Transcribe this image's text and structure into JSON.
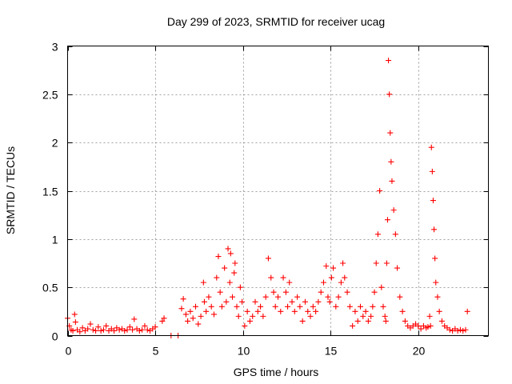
{
  "chart_data": {
    "type": "scatter",
    "title": "Day 299 of 2023, SRMTID for receiver ucag",
    "xlabel": "GPS time / hours",
    "ylabel": "SRMTID / TECUs",
    "xlim": [
      0,
      24
    ],
    "ylim": [
      0,
      3
    ],
    "xticks": [
      0,
      5,
      10,
      15,
      20
    ],
    "yticks": [
      0,
      0.5,
      1,
      1.5,
      2,
      2.5,
      3
    ],
    "xtick_labels": [
      "0",
      "5",
      "10",
      "15",
      "20"
    ],
    "ytick_labels": [
      "0",
      "0.5",
      "1",
      "1.5",
      "2",
      "2.5",
      "3"
    ],
    "grid": true,
    "marker": "+",
    "color": "#ff0000",
    "series": [
      {
        "name": "SRMTID",
        "x": [
          0.0,
          0.1,
          0.2,
          0.3,
          0.4,
          0.45,
          0.55,
          0.7,
          0.85,
          1.0,
          1.15,
          1.3,
          1.45,
          1.6,
          1.75,
          1.9,
          2.05,
          2.2,
          2.35,
          2.5,
          2.65,
          2.8,
          2.95,
          3.1,
          3.25,
          3.4,
          3.55,
          3.7,
          3.8,
          3.95,
          4.1,
          4.25,
          4.4,
          4.55,
          4.7,
          4.85,
          5.0,
          5.4,
          5.5,
          5.9,
          6.3,
          6.5,
          6.6,
          6.75,
          6.85,
          7.0,
          7.15,
          7.3,
          7.45,
          7.6,
          7.75,
          7.8,
          7.9,
          8.05,
          8.2,
          8.35,
          8.5,
          8.6,
          8.7,
          8.8,
          8.95,
          9.05,
          9.15,
          9.25,
          9.3,
          9.4,
          9.5,
          9.55,
          9.65,
          9.75,
          9.85,
          9.95,
          10.1,
          10.25,
          10.4,
          10.55,
          10.7,
          10.85,
          11.0,
          11.15,
          11.3,
          11.45,
          11.6,
          11.75,
          11.85,
          12.0,
          12.15,
          12.3,
          12.45,
          12.55,
          12.65,
          12.8,
          12.95,
          13.1,
          13.25,
          13.4,
          13.55,
          13.7,
          13.85,
          14.0,
          14.15,
          14.3,
          14.45,
          14.6,
          14.75,
          14.85,
          14.95,
          15.05,
          15.15,
          15.3,
          15.45,
          15.6,
          15.7,
          15.8,
          15.95,
          16.1,
          16.25,
          16.4,
          16.55,
          16.7,
          16.85,
          17.0,
          17.15,
          17.3,
          17.4,
          17.5,
          17.6,
          17.7,
          17.8,
          17.9,
          18.0,
          18.1,
          18.15,
          18.2,
          18.25,
          18.3,
          18.35,
          18.4,
          18.45,
          18.5,
          18.6,
          18.7,
          18.8,
          18.95,
          19.1,
          19.25,
          19.4,
          19.55,
          19.7,
          19.85,
          20.0,
          20.15,
          20.3,
          20.45,
          20.55,
          20.65,
          20.7,
          20.75,
          20.8,
          20.85,
          20.9,
          20.95,
          21.0,
          21.1,
          21.2,
          21.35,
          21.5,
          21.65,
          21.8,
          21.95,
          22.1,
          22.25,
          22.4,
          22.55,
          22.7,
          22.8
        ],
        "y": [
          0.18,
          0.1,
          0.06,
          0.05,
          0.22,
          0.14,
          0.06,
          0.04,
          0.08,
          0.05,
          0.07,
          0.12,
          0.06,
          0.05,
          0.09,
          0.05,
          0.06,
          0.1,
          0.05,
          0.07,
          0.05,
          0.08,
          0.06,
          0.07,
          0.05,
          0.06,
          0.09,
          0.06,
          0.17,
          0.07,
          0.05,
          0.06,
          0.1,
          0.06,
          0.05,
          0.07,
          0.09,
          0.15,
          0.18,
          0.0,
          0.0,
          0.28,
          0.38,
          0.22,
          0.15,
          0.25,
          0.18,
          0.3,
          0.12,
          0.2,
          0.55,
          0.35,
          0.25,
          0.4,
          0.3,
          0.22,
          0.6,
          0.82,
          0.45,
          0.3,
          0.7,
          0.35,
          0.9,
          0.55,
          0.85,
          0.4,
          0.65,
          0.75,
          0.3,
          0.2,
          0.5,
          0.35,
          0.1,
          0.25,
          0.15,
          0.2,
          0.35,
          0.25,
          0.3,
          0.2,
          0.4,
          0.8,
          0.6,
          0.45,
          0.3,
          0.4,
          0.25,
          0.6,
          0.45,
          0.3,
          0.55,
          0.35,
          0.25,
          0.4,
          0.3,
          0.15,
          0.35,
          0.25,
          0.2,
          0.3,
          0.25,
          0.35,
          0.45,
          0.55,
          0.72,
          0.4,
          0.35,
          0.6,
          0.7,
          0.3,
          0.4,
          0.55,
          0.75,
          0.6,
          0.45,
          0.3,
          0.1,
          0.25,
          0.15,
          0.3,
          0.2,
          0.25,
          0.15,
          0.2,
          0.3,
          0.45,
          0.75,
          1.05,
          1.5,
          0.5,
          0.3,
          0.2,
          0.15,
          0.75,
          1.2,
          2.85,
          2.5,
          2.1,
          1.8,
          1.6,
          1.3,
          1.05,
          0.7,
          0.4,
          0.25,
          0.15,
          0.1,
          0.08,
          0.1,
          0.12,
          0.1,
          0.07,
          0.1,
          0.08,
          0.09,
          0.2,
          0.1,
          1.95,
          1.7,
          1.4,
          1.1,
          0.8,
          0.55,
          0.4,
          0.25,
          0.15,
          0.1,
          0.08,
          0.06,
          0.05,
          0.07,
          0.05,
          0.06,
          0.05,
          0.06,
          0.25
        ]
      }
    ]
  }
}
